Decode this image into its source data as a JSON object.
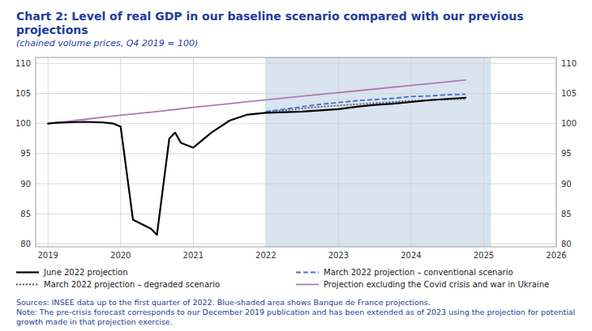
{
  "chart_data": {
    "type": "line",
    "title": "Chart 2: Level of real GDP in our baseline scenario compared with our previous projections",
    "subtitle": "(chained volume prices, Q4 2019 = 100)",
    "annotations": [
      "Sources: INSEE data up to the first quarter of 2022. Blue-shaded area shows Banque de France projections.",
      "Note: The pre-crisis forecast corresponds to our December 2019 publication and has been extended as of 2023 using the projection for potential growth made in that projection exercise."
    ],
    "xlim": [
      2018.83,
      2026.0
    ],
    "xticks": [
      2019,
      2020,
      2021,
      2022,
      2023,
      2024,
      2025,
      2026
    ],
    "ylim": [
      79.5,
      111.0
    ],
    "yticks": [
      80,
      85,
      90,
      95,
      100,
      105,
      110
    ],
    "y2lim": [
      79.5,
      111.0
    ],
    "y2ticks": [
      80,
      85,
      90,
      95,
      100,
      105,
      110
    ],
    "grid": true,
    "legend": "bottom",
    "shade": [
      2022.0,
      2025.1
    ],
    "shade_color": "#d8e4f0",
    "series": [
      {
        "name": "June 2022 projection",
        "color": "#000000",
        "line_style": "solid",
        "x": [
          2019.0,
          2019.08,
          2019.25,
          2019.5,
          2019.75,
          2019.9,
          2020.0,
          2020.17,
          2020.42,
          2020.5,
          2020.67,
          2020.75,
          2020.83,
          2021.0,
          2021.25,
          2021.5,
          2021.75,
          2022.0,
          2022.25,
          2022.5,
          2022.75,
          2023.0,
          2023.25,
          2023.5,
          2023.75,
          2024.0,
          2024.25,
          2024.5,
          2024.75
        ],
        "values": [
          100.0,
          100.1,
          100.2,
          100.3,
          100.2,
          100.0,
          99.5,
          84.0,
          82.5,
          81.5,
          97.5,
          98.5,
          96.8,
          96.0,
          98.5,
          100.5,
          101.5,
          101.8,
          101.9,
          102.0,
          102.2,
          102.4,
          102.8,
          103.1,
          103.3,
          103.6,
          103.9,
          104.1,
          104.3
        ]
      },
      {
        "name": "March 2022 projection – conventional scenario",
        "color": "#4472c4",
        "line_style": "dashed",
        "x": [
          2022.0,
          2022.25,
          2022.5,
          2022.75,
          2023.0,
          2023.25,
          2023.5,
          2023.75,
          2024.0,
          2024.25,
          2024.5,
          2024.75
        ],
        "values": [
          102.0,
          102.4,
          102.8,
          103.2,
          103.5,
          103.8,
          104.0,
          104.2,
          104.5,
          104.6,
          104.8,
          104.9
        ]
      },
      {
        "name": "March 2022 projection – degraded scenario",
        "color": "#595959",
        "line_style": "dotted",
        "x": [
          2022.0,
          2022.25,
          2022.5,
          2022.75,
          2023.0,
          2023.25,
          2023.5,
          2023.75,
          2024.0,
          2024.25,
          2024.5,
          2024.75
        ],
        "values": [
          102.0,
          102.2,
          102.5,
          102.8,
          103.0,
          103.2,
          103.4,
          103.6,
          103.8,
          103.9,
          104.0,
          104.1
        ]
      },
      {
        "name": "Projection excluding the Covid crisis and war in Ukraine",
        "color": "#b07ab0",
        "line_style": "solid",
        "x": [
          2019.0,
          2019.25,
          2019.5,
          2019.75,
          2020.0,
          2020.25,
          2020.5,
          2020.75,
          2021.0,
          2021.25,
          2021.5,
          2021.75,
          2022.0,
          2022.25,
          2022.5,
          2022.75,
          2023.0,
          2023.25,
          2023.5,
          2023.75,
          2024.0,
          2024.25,
          2024.5,
          2024.75
        ],
        "values": [
          100.0,
          100.35,
          100.7,
          101.05,
          101.4,
          101.7,
          102.0,
          102.35,
          102.7,
          103.0,
          103.3,
          103.65,
          103.95,
          104.25,
          104.55,
          104.85,
          105.15,
          105.45,
          105.75,
          106.05,
          106.35,
          106.65,
          106.95,
          107.25
        ]
      }
    ]
  }
}
